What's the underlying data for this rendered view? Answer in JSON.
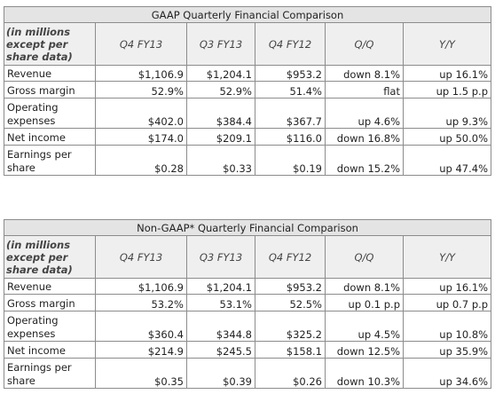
{
  "headers": {
    "label": "(in millions except per share data)",
    "cols": [
      "Q4 FY13",
      "Q3 FY13",
      "Q4 FY12",
      "Q/Q",
      "Y/Y"
    ]
  },
  "gaap": {
    "title": "GAAP Quarterly Financial Comparison",
    "rows": [
      {
        "label": "Revenue",
        "cells": [
          "$1,106.9",
          "$1,204.1",
          "$953.2",
          "down 8.1%",
          "up 16.1%"
        ]
      },
      {
        "label": "Gross margin",
        "cells": [
          "52.9%",
          "52.9%",
          "51.4%",
          "flat",
          "up 1.5 p.p"
        ]
      },
      {
        "label": "Operating expenses",
        "cells": [
          "$402.0",
          "$384.4",
          "$367.7",
          "up 4.6%",
          "up 9.3%"
        ]
      },
      {
        "label": "Net income",
        "cells": [
          "$174.0",
          "$209.1",
          "$116.0",
          "down 16.8%",
          "up 50.0%"
        ]
      },
      {
        "label": "Earnings per share",
        "cells": [
          "$0.28",
          "$0.33",
          "$0.19",
          "down 15.2%",
          "up 47.4%"
        ]
      }
    ]
  },
  "nongaap": {
    "title": "Non-GAAP* Quarterly Financial Comparison",
    "rows": [
      {
        "label": "Revenue",
        "cells": [
          "$1,106.9",
          "$1,204.1",
          "$953.2",
          "down 8.1%",
          "up 16.1%"
        ]
      },
      {
        "label": "Gross margin",
        "cells": [
          "53.2%",
          "53.1%",
          "52.5%",
          "up 0.1 p.p",
          "up 0.7 p.p"
        ]
      },
      {
        "label": "Operating expenses",
        "cells": [
          "$360.4",
          "$344.8",
          "$325.2",
          "up 4.5%",
          "up 10.8%"
        ]
      },
      {
        "label": "Net income",
        "cells": [
          "$214.9",
          "$245.5",
          "$158.1",
          "down 12.5%",
          "up 35.9%"
        ]
      },
      {
        "label": "Earnings per share",
        "cells": [
          "$0.35",
          "$0.39",
          "$0.26",
          "down 10.3%",
          "up 34.6%"
        ]
      }
    ]
  }
}
